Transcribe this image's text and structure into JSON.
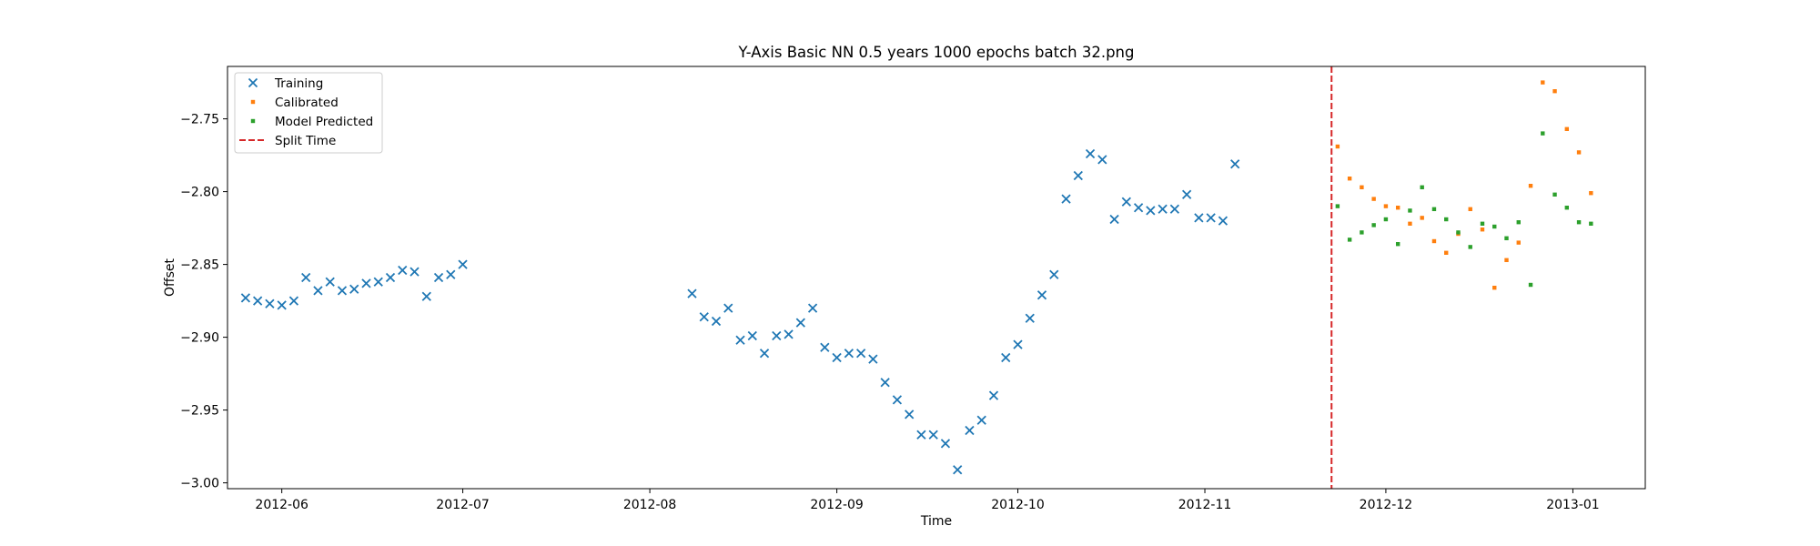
{
  "chart_data": {
    "type": "scatter",
    "title": "Y-Axis Basic NN 0.5 years 1000 epochs batch 32.png",
    "xlabel": "Time",
    "ylabel": "Offset",
    "xlim": [
      "2012-05-23",
      "2013-01-13"
    ],
    "ylim": [
      -3.004,
      -2.714
    ],
    "xticks": [
      "2012-06",
      "2012-07",
      "2012-08",
      "2012-09",
      "2012-10",
      "2012-11",
      "2012-12",
      "2013-01"
    ],
    "yticks": [
      "−3.00",
      "−2.95",
      "−2.90",
      "−2.85",
      "−2.80",
      "−2.75"
    ],
    "grid": false,
    "legend": "upper left",
    "split_time": "2012-11-22",
    "series": [
      {
        "name": "Training",
        "marker": "x",
        "color": "#1f77b4",
        "points": [
          [
            "2012-05-26",
            -2.873
          ],
          [
            "2012-05-28",
            -2.875
          ],
          [
            "2012-05-30",
            -2.877
          ],
          [
            "2012-06-01",
            -2.878
          ],
          [
            "2012-06-03",
            -2.875
          ],
          [
            "2012-06-05",
            -2.859
          ],
          [
            "2012-06-07",
            -2.868
          ],
          [
            "2012-06-09",
            -2.862
          ],
          [
            "2012-06-11",
            -2.868
          ],
          [
            "2012-06-13",
            -2.867
          ],
          [
            "2012-06-15",
            -2.863
          ],
          [
            "2012-06-17",
            -2.862
          ],
          [
            "2012-06-19",
            -2.859
          ],
          [
            "2012-06-21",
            -2.854
          ],
          [
            "2012-06-23",
            -2.855
          ],
          [
            "2012-06-25",
            -2.872
          ],
          [
            "2012-06-27",
            -2.859
          ],
          [
            "2012-06-29",
            -2.857
          ],
          [
            "2012-07-01",
            -2.85
          ],
          [
            "2012-08-08",
            -2.87
          ],
          [
            "2012-08-10",
            -2.886
          ],
          [
            "2012-08-12",
            -2.889
          ],
          [
            "2012-08-14",
            -2.88
          ],
          [
            "2012-08-16",
            -2.902
          ],
          [
            "2012-08-18",
            -2.899
          ],
          [
            "2012-08-20",
            -2.911
          ],
          [
            "2012-08-22",
            -2.899
          ],
          [
            "2012-08-24",
            -2.898
          ],
          [
            "2012-08-26",
            -2.89
          ],
          [
            "2012-08-28",
            -2.88
          ],
          [
            "2012-08-30",
            -2.907
          ],
          [
            "2012-09-01",
            -2.914
          ],
          [
            "2012-09-03",
            -2.911
          ],
          [
            "2012-09-05",
            -2.911
          ],
          [
            "2012-09-07",
            -2.915
          ],
          [
            "2012-09-09",
            -2.931
          ],
          [
            "2012-09-11",
            -2.943
          ],
          [
            "2012-09-13",
            -2.953
          ],
          [
            "2012-09-15",
            -2.967
          ],
          [
            "2012-09-17",
            -2.967
          ],
          [
            "2012-09-19",
            -2.973
          ],
          [
            "2012-09-21",
            -2.991
          ],
          [
            "2012-09-23",
            -2.964
          ],
          [
            "2012-09-25",
            -2.957
          ],
          [
            "2012-09-27",
            -2.94
          ],
          [
            "2012-09-29",
            -2.914
          ],
          [
            "2012-10-01",
            -2.905
          ],
          [
            "2012-10-03",
            -2.887
          ],
          [
            "2012-10-05",
            -2.871
          ],
          [
            "2012-10-07",
            -2.857
          ],
          [
            "2012-10-09",
            -2.805
          ],
          [
            "2012-10-11",
            -2.789
          ],
          [
            "2012-10-13",
            -2.774
          ],
          [
            "2012-10-15",
            -2.778
          ],
          [
            "2012-10-17",
            -2.819
          ],
          [
            "2012-10-19",
            -2.807
          ],
          [
            "2012-10-21",
            -2.811
          ],
          [
            "2012-10-23",
            -2.813
          ],
          [
            "2012-10-25",
            -2.812
          ],
          [
            "2012-10-27",
            -2.812
          ],
          [
            "2012-10-29",
            -2.802
          ],
          [
            "2012-10-31",
            -2.818
          ],
          [
            "2012-11-02",
            -2.818
          ],
          [
            "2012-11-04",
            -2.82
          ],
          [
            "2012-11-06",
            -2.781
          ]
        ]
      },
      {
        "name": "Calibrated",
        "marker": "s",
        "color": "#ff7f0e",
        "points": [
          [
            "2012-11-23",
            -2.769
          ],
          [
            "2012-11-25",
            -2.791
          ],
          [
            "2012-11-27",
            -2.797
          ],
          [
            "2012-11-29",
            -2.805
          ],
          [
            "2012-12-01",
            -2.81
          ],
          [
            "2012-12-03",
            -2.811
          ],
          [
            "2012-12-05",
            -2.822
          ],
          [
            "2012-12-07",
            -2.818
          ],
          [
            "2012-12-09",
            -2.834
          ],
          [
            "2012-12-11",
            -2.842
          ],
          [
            "2012-12-13",
            -2.829
          ],
          [
            "2012-12-15",
            -2.812
          ],
          [
            "2012-12-17",
            -2.826
          ],
          [
            "2012-12-19",
            -2.866
          ],
          [
            "2012-12-21",
            -2.847
          ],
          [
            "2012-12-23",
            -2.835
          ],
          [
            "2012-12-25",
            -2.796
          ],
          [
            "2012-12-27",
            -2.725
          ],
          [
            "2012-12-29",
            -2.731
          ],
          [
            "2012-12-31",
            -2.757
          ],
          [
            "2013-01-02",
            -2.773
          ],
          [
            "2013-01-04",
            -2.801
          ]
        ]
      },
      {
        "name": "Model Predicted",
        "marker": "s",
        "color": "#2ca02c",
        "points": [
          [
            "2012-11-23",
            -2.81
          ],
          [
            "2012-11-25",
            -2.833
          ],
          [
            "2012-11-27",
            -2.828
          ],
          [
            "2012-11-29",
            -2.823
          ],
          [
            "2012-12-01",
            -2.819
          ],
          [
            "2012-12-03",
            -2.836
          ],
          [
            "2012-12-05",
            -2.813
          ],
          [
            "2012-12-07",
            -2.797
          ],
          [
            "2012-12-09",
            -2.812
          ],
          [
            "2012-12-11",
            -2.819
          ],
          [
            "2012-12-13",
            -2.828
          ],
          [
            "2012-12-15",
            -2.838
          ],
          [
            "2012-12-17",
            -2.822
          ],
          [
            "2012-12-19",
            -2.824
          ],
          [
            "2012-12-21",
            -2.832
          ],
          [
            "2012-12-23",
            -2.821
          ],
          [
            "2012-12-25",
            -2.864
          ],
          [
            "2012-12-27",
            -2.76
          ],
          [
            "2012-12-29",
            -2.802
          ],
          [
            "2012-12-31",
            -2.811
          ],
          [
            "2013-01-02",
            -2.821
          ],
          [
            "2013-01-04",
            -2.822
          ]
        ]
      },
      {
        "name": "Split Time",
        "marker": "dashed-line",
        "color": "#d62728"
      }
    ]
  }
}
